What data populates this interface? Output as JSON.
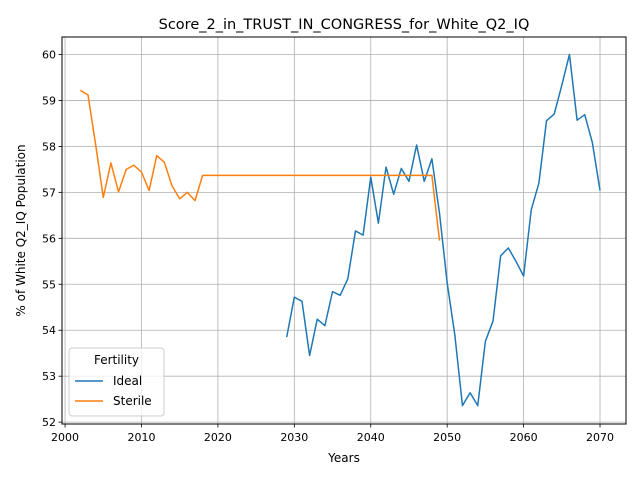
{
  "chart_data": {
    "type": "line",
    "title": "Score_2_in_TRUST_IN_CONGRESS_for_White_Q2_IQ",
    "xlabel": "Years",
    "ylabel": "% of White Q2_IQ Population",
    "xlim": [
      1999.6,
      2073.4
    ],
    "ylim": [
      51.96,
      60.38
    ],
    "xticks": [
      2000,
      2010,
      2020,
      2030,
      2040,
      2050,
      2060,
      2070
    ],
    "yticks": [
      52,
      53,
      54,
      55,
      56,
      57,
      58,
      59,
      60
    ],
    "grid": true,
    "legend": {
      "title": "Fertility",
      "placement": "lower-left"
    },
    "series": [
      {
        "name": "Ideal",
        "color": "#1f77b4",
        "x": [
          2029,
          2030,
          2031,
          2032,
          2033,
          2034,
          2035,
          2036,
          2037,
          2038,
          2039,
          2040,
          2041,
          2042,
          2043,
          2044,
          2045,
          2046,
          2047,
          2048,
          2049,
          2050,
          2051,
          2052,
          2053,
          2054,
          2055,
          2056,
          2057,
          2058,
          2059,
          2060,
          2061,
          2062,
          2063,
          2064,
          2065,
          2066,
          2067,
          2068,
          2069,
          2070
        ],
        "y": [
          53.85,
          54.72,
          54.63,
          53.45,
          54.24,
          54.1,
          54.84,
          54.76,
          55.12,
          56.16,
          56.07,
          57.33,
          56.33,
          57.55,
          56.96,
          57.52,
          57.24,
          58.03,
          57.24,
          57.73,
          56.54,
          55.03,
          53.9,
          52.36,
          52.64,
          52.36,
          53.76,
          54.2,
          55.62,
          55.79,
          55.5,
          55.18,
          56.62,
          57.2,
          58.56,
          58.7,
          59.33,
          60.0,
          58.57,
          58.69,
          58.08,
          57.04
        ]
      },
      {
        "name": "Sterile",
        "color": "#ff7f0e",
        "x": [
          2002,
          2003,
          2004,
          2005,
          2006,
          2007,
          2008,
          2009,
          2010,
          2011,
          2012,
          2013,
          2014,
          2015,
          2016,
          2017,
          2018,
          2019,
          2020,
          2025,
          2030,
          2035,
          2040,
          2045,
          2048,
          2049
        ],
        "y": [
          59.22,
          59.12,
          58.04,
          56.89,
          57.64,
          57.01,
          57.5,
          57.59,
          57.44,
          57.04,
          57.8,
          57.65,
          57.14,
          56.86,
          57.0,
          56.82,
          57.37,
          57.37,
          57.37,
          57.37,
          57.37,
          57.37,
          57.37,
          57.37,
          57.37,
          55.95
        ]
      }
    ]
  }
}
